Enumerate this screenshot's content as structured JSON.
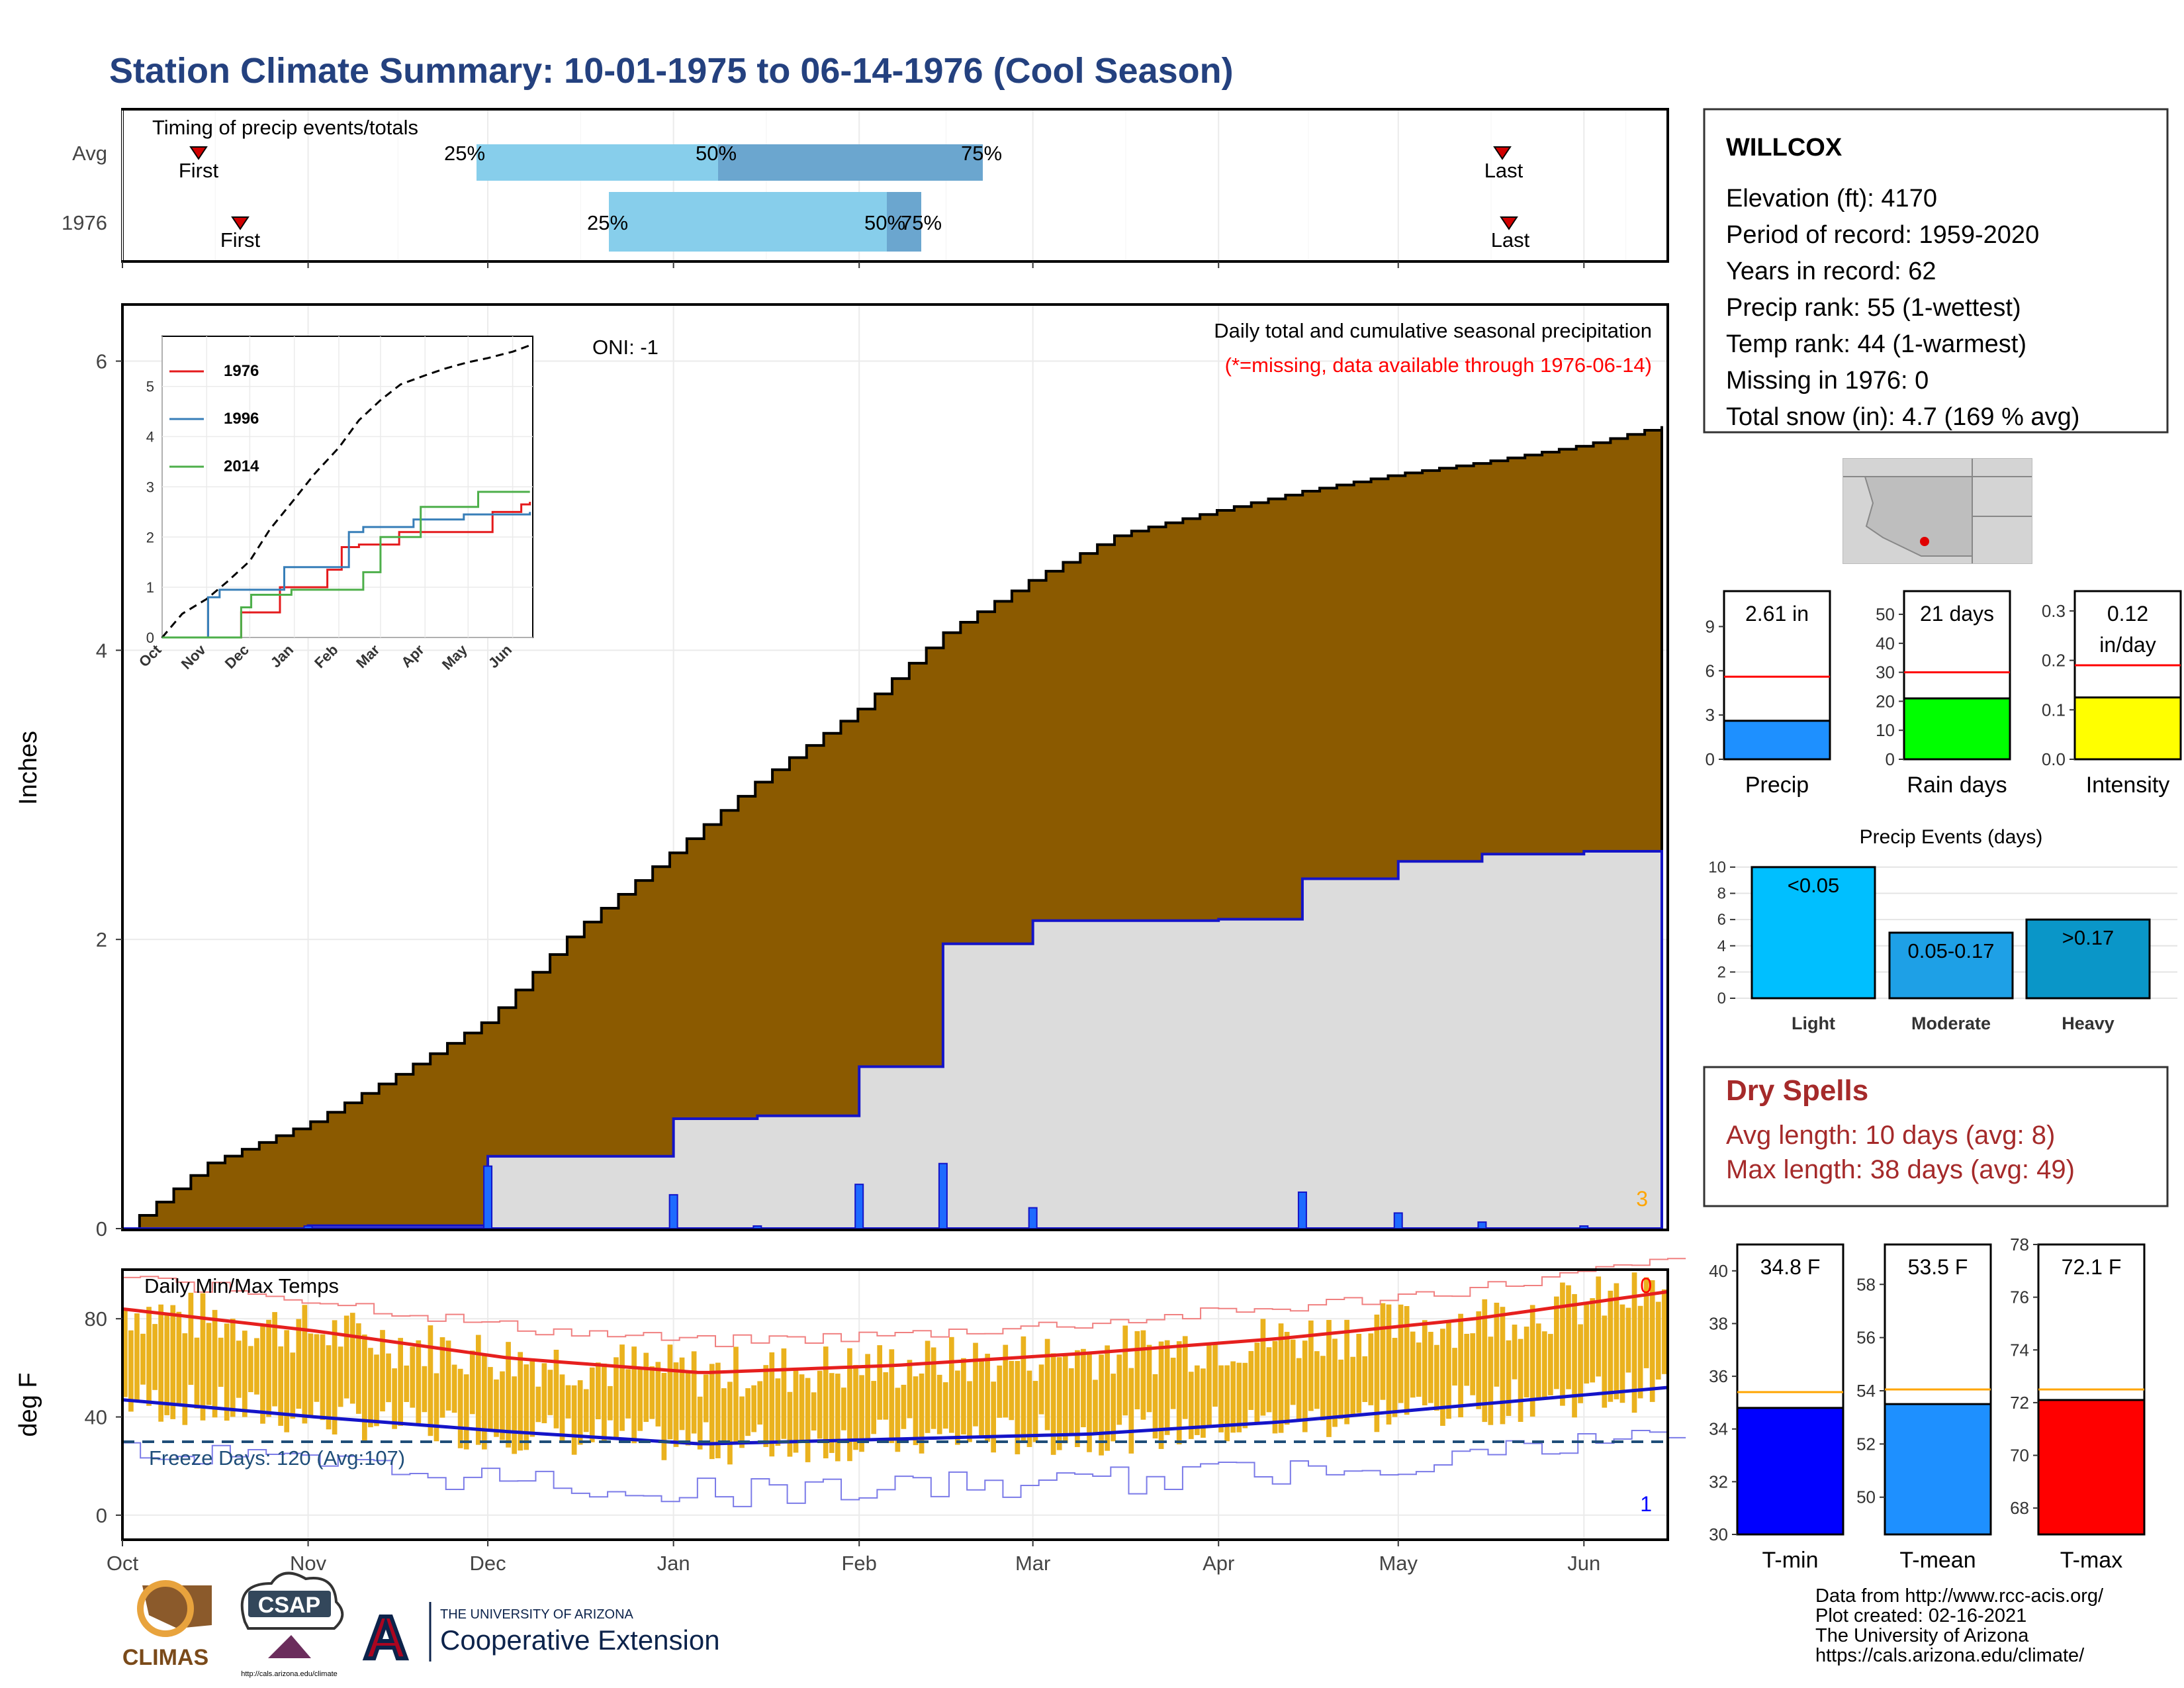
{
  "title": "Station Climate Summary: 10-01-1975 to 06-14-1976 (Cool Season)",
  "colors": {
    "title": "#24417F",
    "precip_fill": "#8B5A00",
    "avg_fill": "#DCDCDC",
    "avg_line": "#1414C8",
    "dry_spell": "#A52A2A",
    "tmax_line": "#E6201E",
    "tmin_line": "#1414C8",
    "temp_bar": "#EAB21E"
  },
  "timing": {
    "label": "Timing of precip events/totals",
    "rows": [
      {
        "name": "Avg",
        "first_label": "First",
        "last_label": "Last",
        "first": "Oct 5",
        "q25": "Nov 24",
        "q50": "Jan 4",
        "q75": "Feb 28",
        "last": "May 17"
      },
      {
        "name": "1976",
        "first_label": "First",
        "last_label": "Last",
        "first": "Oct 12",
        "q25": "Dec 17",
        "q50": "Feb 4",
        "q75": "Feb 10",
        "last": "May 18"
      }
    ],
    "pct_labels": [
      "25%",
      "50%",
      "75%"
    ]
  },
  "precip": {
    "ylabel": "Inches",
    "yticks": [
      "0",
      "2",
      "4",
      "6"
    ],
    "oni": "ONI: -1",
    "caption": "Daily total and cumulative seasonal precipitation",
    "missing_note": "(*=missing, data available through 1976-06-14)",
    "corner_count": "3"
  },
  "inset": {
    "yticks": [
      "0",
      "1",
      "2",
      "3",
      "4",
      "5"
    ],
    "xticks": [
      "Oct",
      "Nov",
      "Dec",
      "Jan",
      "Feb",
      "Mar",
      "Apr",
      "May",
      "Jun"
    ],
    "legend": [
      {
        "name": "1976",
        "color": "#E41A1C"
      },
      {
        "name": "1996",
        "color": "#377EB8"
      },
      {
        "name": "2014",
        "color": "#4DAF4A"
      }
    ]
  },
  "temps": {
    "label": "Daily Min/Max Temps",
    "ylabel": "deg F",
    "yticks": [
      "0",
      "40",
      "80"
    ],
    "freeze": "Freeze Days: 120 (Avg:107)",
    "count_top": "0",
    "count_bottom": "1"
  },
  "months": [
    "Oct",
    "Nov",
    "Dec",
    "Jan",
    "Feb",
    "Mar",
    "Apr",
    "May",
    "Jun"
  ],
  "station": {
    "name": "WILLCOX",
    "lines": [
      "Elevation (ft): 4170",
      "Period of record: 1959-2020",
      "Years in record: 62",
      "Precip rank: 55 (1-wettest)",
      "Temp rank: 44 (1-warmest)",
      "Missing in 1976: 0",
      "Total snow (in): 4.7 (169 % avg)"
    ]
  },
  "mini_precip": [
    {
      "label": "Precip",
      "value_text": "2.61 in",
      "value": 2.61,
      "avg": 5.6,
      "ymax": 11.4,
      "yticks": [
        "0",
        "3",
        "6",
        "9"
      ],
      "tickvals": [
        0,
        3,
        6,
        9
      ],
      "color": "#1E90FF"
    },
    {
      "label": "Rain days",
      "value_text": "21 days",
      "value": 21,
      "avg": 30,
      "ymax": 58,
      "yticks": [
        "0",
        "10",
        "20",
        "30",
        "40",
        "50"
      ],
      "tickvals": [
        0,
        10,
        20,
        30,
        40,
        50
      ],
      "color": "#00FF00"
    },
    {
      "label": "Intensity",
      "value_text_1": "0.12",
      "value_text_2": "in/day",
      "value": 0.125,
      "avg": 0.19,
      "ymax": 0.34,
      "yticks": [
        "0.0",
        "0.1",
        "0.2",
        "0.3"
      ],
      "tickvals": [
        0,
        0.1,
        0.2,
        0.3
      ],
      "color": "#FFFF00"
    }
  ],
  "events": {
    "title": "Precip Events (days)",
    "yticks": [
      "0",
      "2",
      "4",
      "6",
      "8",
      "10"
    ],
    "categories": [
      "Light",
      "Moderate",
      "Heavy"
    ],
    "bar_labels": [
      "<0.05",
      "0.05-0.17",
      ">0.17"
    ],
    "values": [
      10,
      5,
      6
    ],
    "colors": [
      "#00BFFF",
      "#1EA0E6",
      "#0A96C8"
    ]
  },
  "dry": {
    "title": "Dry Spells",
    "avg": "Avg length: 10 days (avg: 8)",
    "max": "Max length: 38 days (avg: 49)"
  },
  "mini_temp": [
    {
      "label": "T-min",
      "value_text": "34.8 F",
      "value": 34.8,
      "avg": 35.4,
      "ymin": 30,
      "ymax": 41,
      "yticks": [
        "30",
        "32",
        "34",
        "36",
        "38",
        "40"
      ],
      "tickvals": [
        30,
        32,
        34,
        36,
        38,
        40
      ],
      "color": "#0000FF"
    },
    {
      "label": "T-mean",
      "value_text": "53.5 F",
      "value": 53.5,
      "avg": 54.05,
      "ymin": 48.6,
      "ymax": 59.5,
      "yticks": [
        "50",
        "52",
        "54",
        "56",
        "58"
      ],
      "tickvals": [
        50,
        52,
        54,
        56,
        58
      ],
      "color": "#1E90FF"
    },
    {
      "label": "T-max",
      "value_text": "72.1 F",
      "value": 72.1,
      "avg": 72.5,
      "ymin": 67,
      "ymax": 78,
      "yticks": [
        "68",
        "70",
        "72",
        "74",
        "76",
        "78"
      ],
      "tickvals": [
        68,
        70,
        72,
        74,
        76,
        78
      ],
      "color": "#FF0000"
    }
  ],
  "footer": {
    "lines": [
      "Data from http://www.rcc-acis.org/",
      "Plot created: 02-16-2021",
      "The University of Arizona",
      "https://cals.arizona.edu/climate/"
    ],
    "climas": "CLIMAS",
    "csap": "CSAP",
    "csap_url": "http://cals.arizona.edu/climate",
    "ua_small": "THE UNIVERSITY OF ARIZONA",
    "ua_big": "Cooperative Extension"
  },
  "chart_data": [
    {
      "type": "area",
      "title": "Daily total and cumulative seasonal precipitation",
      "ylabel": "Inches",
      "ylim": [
        0,
        6.1
      ],
      "x": [
        "Oct 1",
        "Oct 15",
        "Nov 1",
        "Nov 15",
        "Dec 1",
        "Dec 15",
        "Jan 1",
        "Jan 15",
        "Feb 1",
        "Feb 15",
        "Mar 1",
        "Mar 15",
        "Apr 1",
        "Apr 15",
        "May 1",
        "May 15",
        "Jun 1",
        "Jun 14"
      ],
      "series": [
        {
          "name": "Average cumulative",
          "values": [
            0,
            0.45,
            0.73,
            1.05,
            1.45,
            2.05,
            2.62,
            3.1,
            3.6,
            4.12,
            4.5,
            4.8,
            4.97,
            5.1,
            5.22,
            5.3,
            5.42,
            5.55
          ]
        },
        {
          "name": "1976 cumulative",
          "values": [
            0,
            0,
            0.02,
            0.02,
            0.5,
            0.5,
            0.76,
            0.78,
            1.12,
            1.97,
            2.13,
            2.13,
            2.14,
            2.42,
            2.54,
            2.59,
            2.61,
            2.61
          ]
        }
      ]
    },
    {
      "type": "line",
      "title": "Daily Min/Max Temps",
      "ylabel": "deg F",
      "x": [
        "Oct",
        "Nov",
        "Dec",
        "Jan",
        "Feb",
        "Mar",
        "Apr",
        "May",
        "Jun"
      ],
      "series": [
        {
          "name": "Avg Tmax",
          "values": [
            84,
            75,
            64,
            58,
            61,
            66,
            72,
            80,
            91
          ]
        },
        {
          "name": "Avg Tmin",
          "values": [
            47,
            40,
            34,
            29,
            31,
            33,
            38,
            45,
            52
          ]
        }
      ]
    }
  ]
}
